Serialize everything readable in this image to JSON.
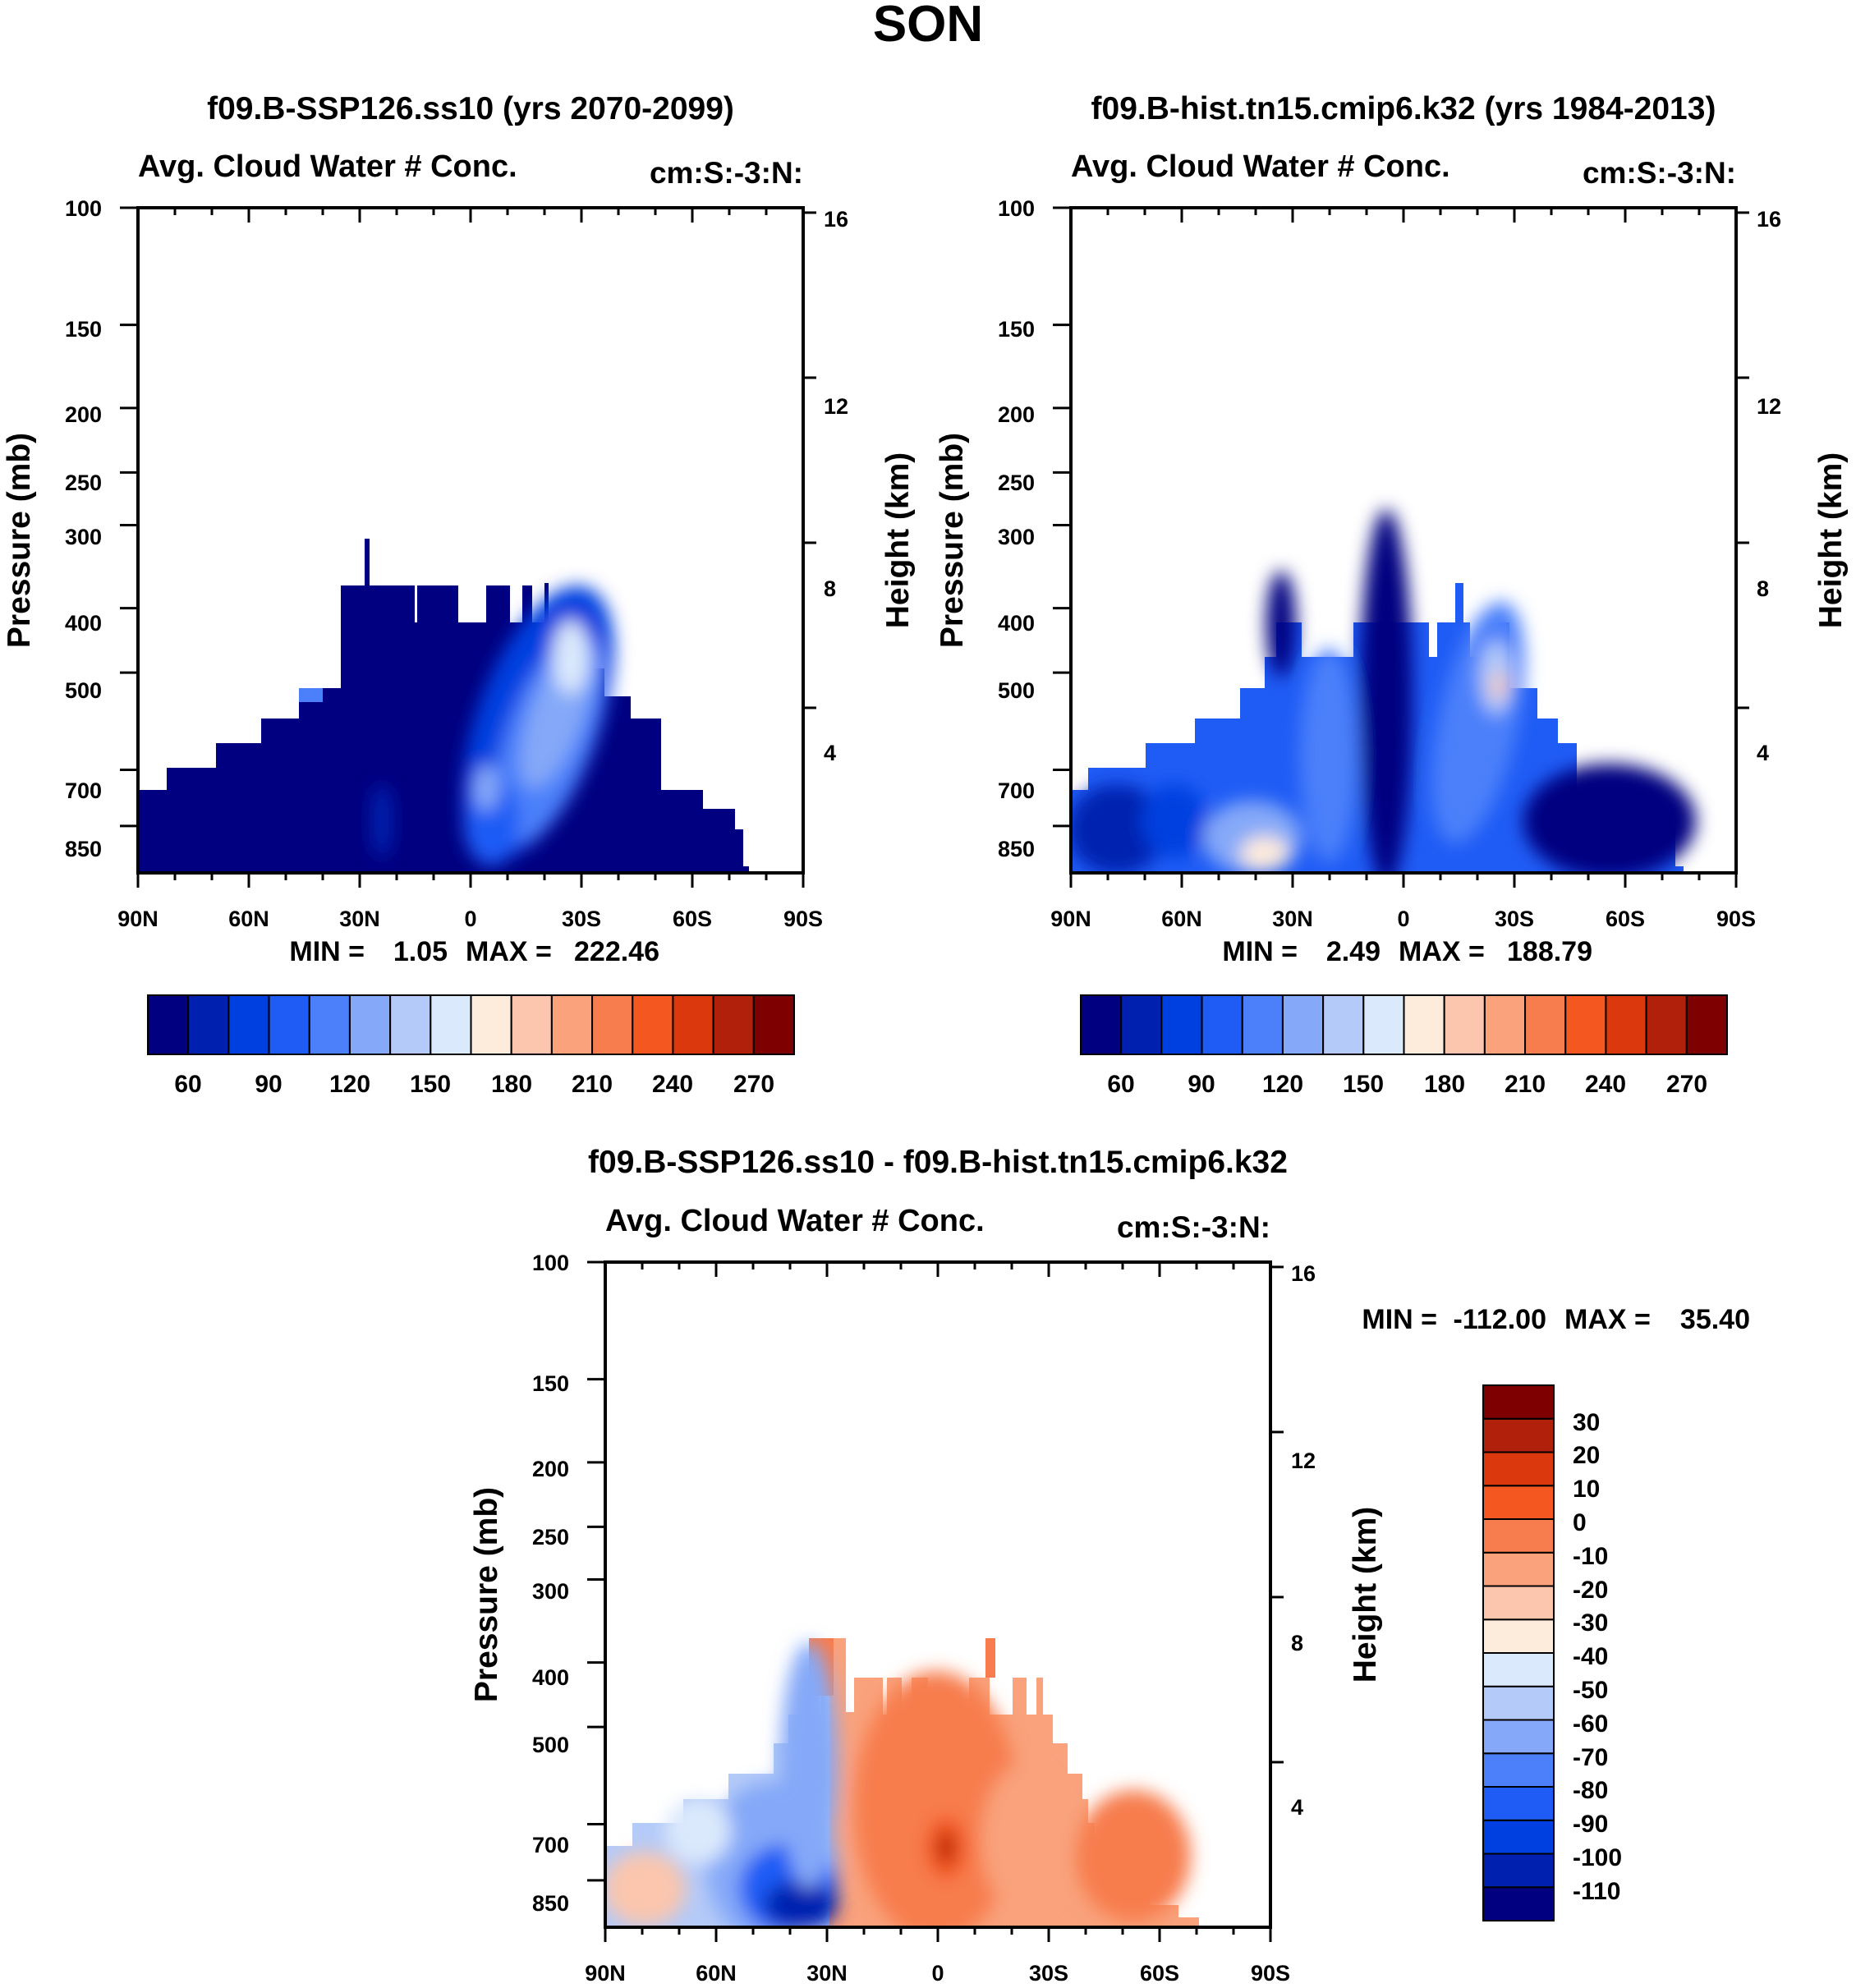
{
  "figure_title": "SON",
  "chart_data": [
    {
      "type": "heatmap",
      "title": "f09.B-SSP126.ss10 (yrs 2070-2099)",
      "left_string": "Avg. Cloud Water # Conc.",
      "right_string": "cm:S:-3:N:",
      "ylabel": "Pressure (mb)",
      "y2label": "Height (km)",
      "xticks": [
        "90N",
        "60N",
        "30N",
        "0",
        "30S",
        "60S",
        "90S"
      ],
      "yticks": [
        "100",
        "150",
        "200",
        "250",
        "300",
        "400",
        "500",
        "700",
        "850"
      ],
      "y2ticks": [
        "16",
        "12",
        "8",
        "4"
      ],
      "ylim": [
        100,
        1000
      ],
      "stats": {
        "min_label": "MIN =",
        "min": "1.05",
        "max_label": "MAX =",
        "max": "222.46"
      },
      "colorbar": {
        "orientation": "horizontal",
        "colors": [
          "#000080",
          "#0020b0",
          "#0040e0",
          "#1f5cf5",
          "#4b80fa",
          "#85a9f8",
          "#b4caf8",
          "#dbe9fc",
          "#fdebdc",
          "#fbc6ad",
          "#f9a27c",
          "#f77d4e",
          "#f4571f",
          "#dc380e",
          "#b1200b",
          "#7f0000"
        ],
        "labels": [
          "60",
          "90",
          "120",
          "150",
          "180",
          "210",
          "240",
          "270"
        ]
      }
    },
    {
      "type": "heatmap",
      "title": "f09.B-hist.tn15.cmip6.k32 (yrs 1984-2013)",
      "left_string": "Avg. Cloud Water # Conc.",
      "right_string": "cm:S:-3:N:",
      "ylabel": "Pressure (mb)",
      "y2label": "Height (km)",
      "xticks": [
        "90N",
        "60N",
        "30N",
        "0",
        "30S",
        "60S",
        "90S"
      ],
      "yticks": [
        "100",
        "150",
        "200",
        "250",
        "300",
        "400",
        "500",
        "700",
        "850"
      ],
      "y2ticks": [
        "16",
        "12",
        "8",
        "4"
      ],
      "ylim": [
        100,
        1000
      ],
      "stats": {
        "min_label": "MIN =",
        "min": "2.49",
        "max_label": "MAX =",
        "max": "188.79"
      },
      "colorbar": {
        "orientation": "horizontal",
        "colors": [
          "#000080",
          "#0020b0",
          "#0040e0",
          "#1f5cf5",
          "#4b80fa",
          "#85a9f8",
          "#b4caf8",
          "#dbe9fc",
          "#fdebdc",
          "#fbc6ad",
          "#f9a27c",
          "#f77d4e",
          "#f4571f",
          "#dc380e",
          "#b1200b",
          "#7f0000"
        ],
        "labels": [
          "60",
          "90",
          "120",
          "150",
          "180",
          "210",
          "240",
          "270"
        ]
      }
    },
    {
      "type": "heatmap",
      "title": "f09.B-SSP126.ss10 - f09.B-hist.tn15.cmip6.k32",
      "left_string": "Avg. Cloud Water # Conc.",
      "right_string": "cm:S:-3:N:",
      "ylabel": "Pressure (mb)",
      "y2label": "Height (km)",
      "xticks": [
        "90N",
        "60N",
        "30N",
        "0",
        "30S",
        "60S",
        "90S"
      ],
      "yticks": [
        "100",
        "150",
        "200",
        "250",
        "300",
        "400",
        "500",
        "700",
        "850"
      ],
      "y2ticks": [
        "16",
        "12",
        "8",
        "4"
      ],
      "ylim": [
        100,
        1000
      ],
      "stats": {
        "min_label": "MIN =",
        "min": "-112.00",
        "max_label": "MAX =",
        "max": "35.40"
      },
      "colorbar": {
        "orientation": "vertical",
        "colors": [
          "#000080",
          "#0020b0",
          "#0040e0",
          "#1f5cf5",
          "#4b80fa",
          "#85a9f8",
          "#b4caf8",
          "#dbe9fc",
          "#fdebdc",
          "#fbc6ad",
          "#f9a27c",
          "#f77d4e",
          "#f4571f",
          "#dc380e",
          "#b1200b",
          "#7f0000"
        ],
        "labels": [
          "-110",
          "-100",
          "-90",
          "-80",
          "-70",
          "-60",
          "-50",
          "-40",
          "-30",
          "-20",
          "-10",
          "0",
          "10",
          "20",
          "30"
        ]
      }
    }
  ]
}
